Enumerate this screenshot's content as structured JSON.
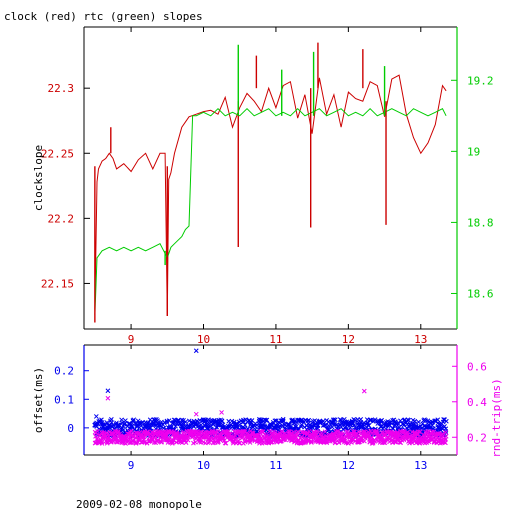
{
  "chart_data": [
    {
      "type": "line",
      "title": "clock (red) rtc (green) slopes",
      "ylabel": "clockslope",
      "xlim": [
        8.35,
        13.5
      ],
      "ylim": [
        22.115,
        22.347
      ],
      "y2lim": [
        18.5,
        19.35
      ],
      "xticks": [
        9,
        10,
        11,
        12,
        13
      ],
      "yticks": [
        22.15,
        22.2,
        22.25,
        22.3
      ],
      "ytick_labels": [
        "22.15",
        "22.2",
        "22.25",
        "22.3"
      ],
      "y2ticks": [
        18.6,
        18.8,
        19.0,
        19.2
      ],
      "y2tick_labels": [
        "18.6",
        "18.8",
        "19",
        "19.2"
      ],
      "colors": {
        "left_axis": "#cc0000",
        "right_axis": "#00cc00",
        "axes": "#000000"
      },
      "series": [
        {
          "name": "clock",
          "color": "#cc0000",
          "axis": "left",
          "x": [
            8.5,
            8.53,
            8.55,
            8.6,
            8.65,
            8.7,
            8.75,
            8.8,
            8.9,
            9.0,
            9.1,
            9.2,
            9.3,
            9.4,
            9.47,
            9.5,
            9.52,
            9.55,
            9.6,
            9.7,
            9.8,
            9.9,
            10.0,
            10.1,
            10.2,
            10.3,
            10.4,
            10.5,
            10.6,
            10.7,
            10.8,
            10.9,
            11.0,
            11.1,
            11.2,
            11.3,
            11.4,
            11.5,
            11.6,
            11.7,
            11.8,
            11.9,
            12.0,
            12.1,
            12.2,
            12.3,
            12.4,
            12.5,
            12.6,
            12.7,
            12.8,
            12.9,
            13.0,
            13.1,
            13.2,
            13.3,
            13.35
          ],
          "y": [
            22.13,
            22.228,
            22.238,
            22.244,
            22.246,
            22.25,
            22.246,
            22.238,
            22.242,
            22.236,
            22.245,
            22.25,
            22.238,
            22.25,
            22.25,
            22.125,
            22.23,
            22.235,
            22.25,
            22.27,
            22.278,
            22.28,
            22.282,
            22.283,
            22.28,
            22.293,
            22.27,
            22.285,
            22.296,
            22.29,
            22.282,
            22.3,
            22.285,
            22.302,
            22.305,
            22.277,
            22.295,
            22.265,
            22.308,
            22.28,
            22.295,
            22.27,
            22.297,
            22.292,
            22.29,
            22.305,
            22.302,
            22.278,
            22.307,
            22.31,
            22.28,
            22.262,
            22.25,
            22.258,
            22.272,
            22.302,
            22.298
          ]
        },
        {
          "name": "rtc",
          "color": "#00cc00",
          "axis": "right",
          "x": [
            8.5,
            8.53,
            8.6,
            8.7,
            8.8,
            8.9,
            9.0,
            9.1,
            9.2,
            9.3,
            9.4,
            9.45,
            9.5,
            9.55,
            9.6,
            9.7,
            9.75,
            9.8,
            9.85,
            9.9,
            10.0,
            10.1,
            10.2,
            10.3,
            10.4,
            10.5,
            10.6,
            10.7,
            10.8,
            10.9,
            11.0,
            11.1,
            11.2,
            11.3,
            11.4,
            11.5,
            11.6,
            11.7,
            11.8,
            11.9,
            12.0,
            12.1,
            12.2,
            12.3,
            12.4,
            12.5,
            12.6,
            12.7,
            12.8,
            12.9,
            13.0,
            13.1,
            13.2,
            13.3,
            13.35
          ],
          "y": [
            18.54,
            18.7,
            18.72,
            18.73,
            18.72,
            18.73,
            18.72,
            18.73,
            18.72,
            18.73,
            18.74,
            18.72,
            18.7,
            18.73,
            18.74,
            18.76,
            18.78,
            18.79,
            19.1,
            19.1,
            19.11,
            19.1,
            19.12,
            19.1,
            19.11,
            19.1,
            19.12,
            19.1,
            19.11,
            19.12,
            19.1,
            19.11,
            19.1,
            19.12,
            19.1,
            19.11,
            19.12,
            19.1,
            19.11,
            19.12,
            19.1,
            19.11,
            19.1,
            19.12,
            19.1,
            19.11,
            19.12,
            19.11,
            19.1,
            19.12,
            19.11,
            19.1,
            19.11,
            19.12,
            19.1
          ]
        }
      ],
      "spikes": [
        {
          "series": "clock",
          "x": 8.5,
          "from": 22.24,
          "to": 22.12
        },
        {
          "series": "clock",
          "x": 8.72,
          "from": 22.25,
          "to": 22.27
        },
        {
          "series": "clock",
          "x": 9.5,
          "from": 22.24,
          "to": 22.125
        },
        {
          "series": "clock",
          "x": 10.48,
          "from": 22.29,
          "to": 22.178
        },
        {
          "series": "clock",
          "x": 10.73,
          "from": 22.3,
          "to": 22.325
        },
        {
          "series": "clock",
          "x": 11.48,
          "from": 22.3,
          "to": 22.193
        },
        {
          "series": "clock",
          "x": 11.58,
          "from": 22.3,
          "to": 22.335
        },
        {
          "series": "clock",
          "x": 12.52,
          "from": 22.29,
          "to": 22.195
        },
        {
          "series": "clock",
          "x": 12.2,
          "from": 22.3,
          "to": 22.33
        },
        {
          "series": "rtc",
          "x": 10.48,
          "from": 19.1,
          "to": 19.3
        },
        {
          "series": "rtc",
          "x": 11.08,
          "from": 19.1,
          "to": 19.23
        },
        {
          "series": "rtc",
          "x": 11.52,
          "from": 19.1,
          "to": 19.28
        },
        {
          "series": "rtc",
          "x": 12.5,
          "from": 19.1,
          "to": 19.24
        },
        {
          "series": "rtc",
          "x": 9.47,
          "from": 18.72,
          "to": 18.68
        }
      ],
      "grid": false,
      "legend": "none"
    },
    {
      "type": "scatter",
      "ylabel": "offset(ms)",
      "y2label": "rnd-trip(ms)",
      "xlim": [
        8.35,
        13.5
      ],
      "ylim": [
        -0.095,
        0.29
      ],
      "y2lim": [
        0.1,
        0.72
      ],
      "xticks": [
        9,
        10,
        11,
        12,
        13
      ],
      "yticks": [
        0,
        0.1,
        0.2
      ],
      "ytick_labels": [
        "0",
        "0.1",
        "0.2"
      ],
      "y2ticks": [
        0.2,
        0.4,
        0.6
      ],
      "y2tick_labels": [
        "0.2",
        "0.4",
        "0.6"
      ],
      "colors": {
        "left_axis": "#0000ee",
        "right_axis": "#ee00ee"
      },
      "series": [
        {
          "name": "offset",
          "color": "#0000ee",
          "axis": "left",
          "marker": "x",
          "band": {
            "x": [
              8.5,
              13.35
            ],
            "center": 0.0,
            "spread": 0.03
          },
          "outliers": [
            {
              "x": 8.68,
              "y": 0.13
            },
            {
              "x": 9.9,
              "y": 0.27
            },
            {
              "x": 8.52,
              "y": 0.04
            },
            {
              "x": 11.1,
              "y": 0.03
            }
          ]
        },
        {
          "name": "rnd-trip",
          "color": "#ee00ee",
          "axis": "right",
          "marker": "x",
          "band": {
            "x": [
              8.5,
              13.35
            ],
            "center": 0.2,
            "spread": 0.035
          },
          "outliers": [
            {
              "x": 8.68,
              "y": 0.42
            },
            {
              "x": 12.22,
              "y": 0.46
            },
            {
              "x": 9.9,
              "y": 0.33
            },
            {
              "x": 10.25,
              "y": 0.34
            }
          ]
        }
      ],
      "grid": false,
      "legend": "none"
    }
  ],
  "footer": "2009-02-08 monopole"
}
